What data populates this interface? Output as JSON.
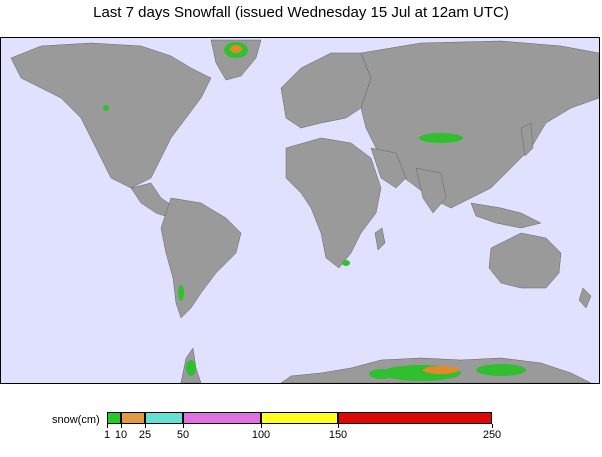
{
  "title": "Last 7 days Snowfall (issued Wednesday 15 Jul at 12am UTC)",
  "map": {
    "ocean_color": "#e0e0ff",
    "land_color": "#9a9a9a",
    "snow_low_color": "#2fbf2f",
    "snow_high_color": "#e08a2a"
  },
  "legend": {
    "label": "snow(cm)",
    "bins": [
      {
        "from": 1,
        "to": 10,
        "color": "#22cc22"
      },
      {
        "from": 10,
        "to": 25,
        "color": "#e09a40"
      },
      {
        "from": 25,
        "to": 50,
        "color": "#66e0d0"
      },
      {
        "from": 50,
        "to": 100,
        "color": "#e070e0"
      },
      {
        "from": 100,
        "to": 150,
        "color": "#ffff20"
      },
      {
        "from": 150,
        "to": 250,
        "color": "#dd0808"
      }
    ],
    "ticks": [
      "1",
      "10",
      "25",
      "50",
      "100",
      "150",
      "250"
    ]
  }
}
